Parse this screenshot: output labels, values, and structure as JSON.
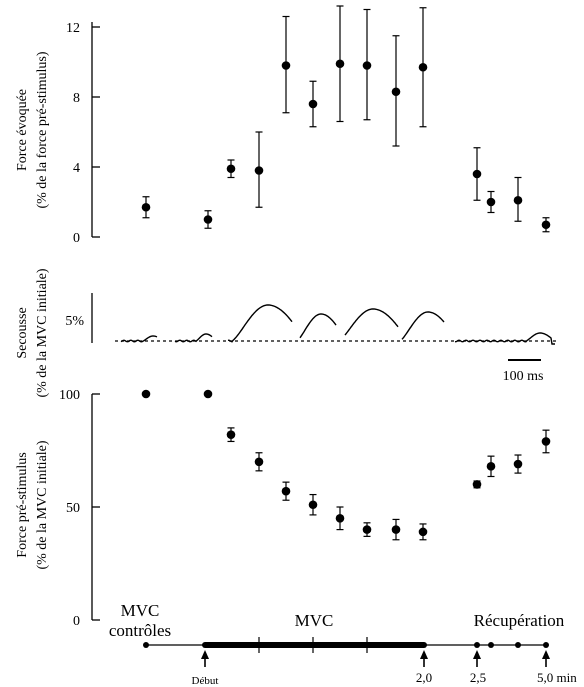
{
  "panels": {
    "top": {
      "ylabel_line1": "Force évoquée",
      "ylabel_line2": "(% de la force pré-stimulus)"
    },
    "middle": {
      "ylabel_line1": "Secousse",
      "ylabel_line2": "(% de la MVC initiale)",
      "scale_y_label": "5%",
      "scale_x_label": "100 ms"
    },
    "bottom": {
      "ylabel_line1": "Force pré-stimulus",
      "ylabel_line2": "(% de la MVC initiale)"
    }
  },
  "phases": {
    "control_line1": "MVC",
    "control_line2": "contrôles",
    "mvc": "MVC",
    "recovery": "Récupération"
  },
  "timeline": {
    "start_label": "Début",
    "t2_label": "2,0",
    "t25_label": "2,5",
    "t5_label": "5,0 min"
  },
  "chart_data": [
    {
      "type": "scatter",
      "ylabel": "Force évoquée (% de la force pré-stimulus)",
      "ylim": [
        0,
        12
      ],
      "yticks": [
        "0",
        "4",
        "8",
        "12"
      ],
      "error_bars": true,
      "points": [
        {
          "value": 1.7,
          "err_lo": 0.6,
          "err_hi": 0.6
        },
        {
          "value": 1.0,
          "err_lo": 0.5,
          "err_hi": 0.5
        },
        {
          "value": 3.9,
          "err_lo": 0.5,
          "err_hi": 0.5
        },
        {
          "value": 3.8,
          "err_lo": 2.1,
          "err_hi": 2.2
        },
        {
          "value": 9.8,
          "err_lo": 2.7,
          "err_hi": 2.8
        },
        {
          "value": 7.6,
          "err_lo": 1.3,
          "err_hi": 1.3
        },
        {
          "value": 9.9,
          "err_lo": 3.3,
          "err_hi": 3.3
        },
        {
          "value": 9.8,
          "err_lo": 3.1,
          "err_hi": 3.2
        },
        {
          "value": 8.3,
          "err_lo": 3.1,
          "err_hi": 3.2
        },
        {
          "value": 9.7,
          "err_lo": 3.4,
          "err_hi": 3.4
        },
        {
          "value": 3.6,
          "err_lo": 1.5,
          "err_hi": 1.5
        },
        {
          "value": 2.0,
          "err_lo": 0.6,
          "err_hi": 0.6
        },
        {
          "value": 2.1,
          "err_lo": 1.2,
          "err_hi": 1.3
        },
        {
          "value": 0.7,
          "err_lo": 0.4,
          "err_hi": 0.4
        }
      ]
    },
    {
      "type": "line",
      "ylabel": "Secousse (% de la MVC initiale)",
      "description_scale": "5%",
      "time_scale": "100 ms",
      "twitch_peaks": [
        0.5,
        0.7,
        3.6,
        2.7,
        3.2,
        2.9,
        0.8
      ]
    },
    {
      "type": "scatter",
      "ylabel": "Force pré-stimulus (% de la MVC initiale)",
      "ylim": [
        0,
        100
      ],
      "yticks": [
        "0",
        "50",
        "100"
      ],
      "error_bars": true,
      "points": [
        {
          "value": 100,
          "err_lo": 0,
          "err_hi": 0
        },
        {
          "value": 100,
          "err_lo": 0,
          "err_hi": 0
        },
        {
          "value": 82,
          "err_lo": 3,
          "err_hi": 3
        },
        {
          "value": 70,
          "err_lo": 4,
          "err_hi": 4
        },
        {
          "value": 57,
          "err_lo": 4,
          "err_hi": 4
        },
        {
          "value": 51,
          "err_lo": 4.5,
          "err_hi": 4.5
        },
        {
          "value": 45,
          "err_lo": 5,
          "err_hi": 5
        },
        {
          "value": 40,
          "err_lo": 3,
          "err_hi": 3
        },
        {
          "value": 40,
          "err_lo": 4.5,
          "err_hi": 4.5
        },
        {
          "value": 39,
          "err_lo": 3.5,
          "err_hi": 3.5
        },
        {
          "value": 60,
          "err_lo": 1.5,
          "err_hi": 1.5
        },
        {
          "value": 68,
          "err_lo": 4.5,
          "err_hi": 4.5
        },
        {
          "value": 69,
          "err_lo": 4,
          "err_hi": 4
        },
        {
          "value": 79,
          "err_lo": 5,
          "err_hi": 5
        }
      ]
    }
  ]
}
